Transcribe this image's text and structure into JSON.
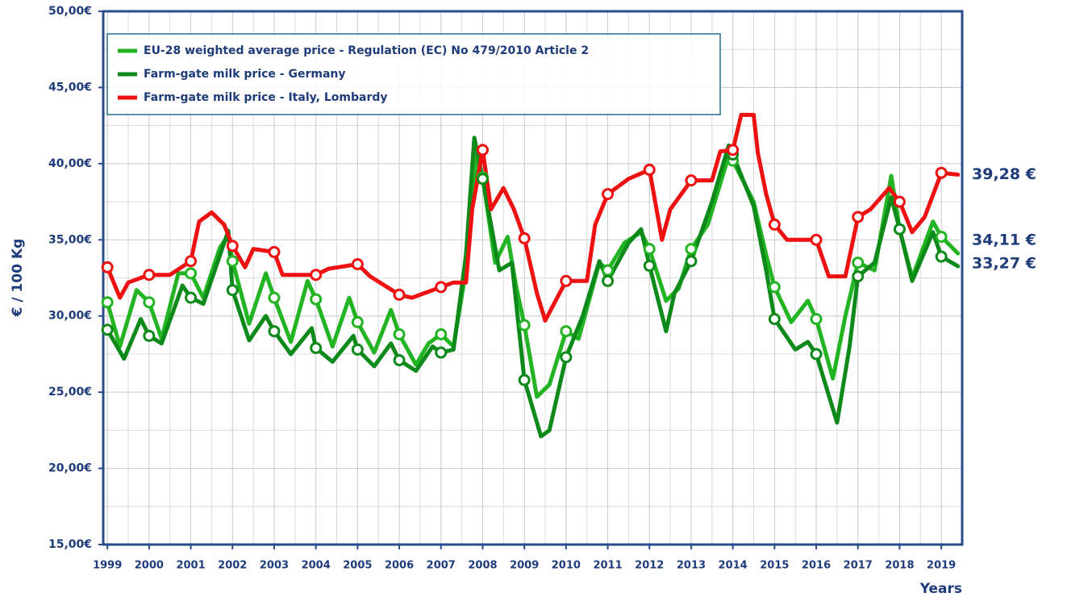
{
  "chart_data": {
    "type": "line",
    "y_axis_label": "€ / 100 Kg",
    "x_axis_label": "Years",
    "xlim": [
      1998.9,
      2019.5
    ],
    "ylim": [
      15,
      50
    ],
    "xticks": [
      1999,
      2000,
      2001,
      2002,
      2003,
      2004,
      2005,
      2006,
      2007,
      2008,
      2009,
      2010,
      2011,
      2012,
      2013,
      2014,
      2015,
      2016,
      2017,
      2018,
      2019
    ],
    "minor_xticks": [
      1999.5,
      2000.5,
      2001.5,
      2002.5,
      2003.5,
      2004.5,
      2005.5,
      2006.5,
      2007.5,
      2008.5,
      2009.5,
      2010.5,
      2011.5,
      2012.5,
      2013.5,
      2014.5,
      2015.5,
      2016.5,
      2017.5,
      2018.5
    ],
    "yticks": [
      {
        "value": 15,
        "label": "15,00€"
      },
      {
        "value": 20,
        "label": "20,00€"
      },
      {
        "value": 25,
        "label": "25,00€"
      },
      {
        "value": 30,
        "label": "30,00€"
      },
      {
        "value": 35,
        "label": "35,00€"
      },
      {
        "value": 40,
        "label": "40,00€"
      },
      {
        "value": 45,
        "label": "45,00€"
      },
      {
        "value": 50,
        "label": "50,00€"
      }
    ],
    "minor_yticks": [
      17.5,
      22.5,
      27.5,
      32.5,
      37.5,
      42.5,
      47.5
    ],
    "grid": true,
    "legend_position": "upper left",
    "series": [
      {
        "name": "EU-28 weighted average price - Regulation (EC) No 479/2010 Article 2",
        "color": "#22b422",
        "label_color": "#1cb31c",
        "end_label": "34,11 €",
        "x": [
          1999,
          1999.3,
          1999.7,
          2000,
          2000.3,
          2000.7,
          2001,
          2001.3,
          2001.7,
          2001.9,
          2002,
          2002.4,
          2002.8,
          2003,
          2003.4,
          2003.8,
          2004,
          2004.4,
          2004.8,
          2005,
          2005.4,
          2005.8,
          2006,
          2006.4,
          2006.7,
          2007,
          2007.3,
          2007.6,
          2007.85,
          2008,
          2008.3,
          2008.6,
          2008.8,
          2009,
          2009.3,
          2009.6,
          2010,
          2010.3,
          2010.8,
          2011,
          2011.4,
          2011.8,
          2012,
          2012.4,
          2012.7,
          2013,
          2013.4,
          2013.9,
          2014,
          2014.5,
          2014.8,
          2015,
          2015.4,
          2015.8,
          2016,
          2016.4,
          2016.7,
          2017,
          2017.4,
          2017.8,
          2018,
          2018.3,
          2018.8,
          2019,
          2019.4
        ],
        "values": [
          30.9,
          28.0,
          31.7,
          30.9,
          28.5,
          32.8,
          32.8,
          31.2,
          34.5,
          35.3,
          33.6,
          29.5,
          32.8,
          31.2,
          28.3,
          32.3,
          31.1,
          28.0,
          31.2,
          29.6,
          27.6,
          30.4,
          28.8,
          26.8,
          28.2,
          28.8,
          28.0,
          33.0,
          40.5,
          39.1,
          33.5,
          35.2,
          32.0,
          29.4,
          24.7,
          25.5,
          29.0,
          28.5,
          33.5,
          33.0,
          34.8,
          35.5,
          34.4,
          31.0,
          31.8,
          34.4,
          36.0,
          40.5,
          40.2,
          37.5,
          34.0,
          31.9,
          29.6,
          31.0,
          29.8,
          25.9,
          30.0,
          33.5,
          33.0,
          39.2,
          35.7,
          32.5,
          36.2,
          35.2,
          34.11
        ]
      },
      {
        "name": "Farm-gate milk price - Germany",
        "color": "#0d8a1a",
        "label_color": "#1a8a1a",
        "end_label": "33,27 €",
        "x": [
          1999,
          1999.4,
          1999.8,
          2000,
          2000.3,
          2000.8,
          2001,
          2001.3,
          2001.9,
          2002,
          2002.4,
          2002.8,
          2003,
          2003.4,
          2003.9,
          2004,
          2004.4,
          2004.9,
          2005,
          2005.4,
          2005.8,
          2006,
          2006.4,
          2006.8,
          2007,
          2007.3,
          2007.6,
          2007.8,
          2008,
          2008.4,
          2008.7,
          2009,
          2009.4,
          2009.6,
          2010,
          2010.4,
          2010.8,
          2011,
          2011.5,
          2011.8,
          2012,
          2012.4,
          2012.6,
          2013,
          2013.5,
          2013.9,
          2014,
          2014.5,
          2014.8,
          2015,
          2015.5,
          2015.8,
          2016,
          2016.5,
          2016.8,
          2017,
          2017.4,
          2017.8,
          2018,
          2018.3,
          2018.8,
          2019,
          2019.4
        ],
        "values": [
          29.1,
          27.2,
          29.8,
          28.7,
          28.2,
          32.0,
          31.2,
          30.8,
          35.6,
          31.7,
          28.4,
          30.0,
          29.0,
          27.5,
          29.2,
          27.9,
          27.0,
          28.7,
          27.8,
          26.7,
          28.2,
          27.1,
          26.4,
          28.0,
          27.6,
          27.8,
          34.0,
          41.7,
          39.0,
          33.0,
          33.5,
          25.8,
          22.1,
          22.5,
          27.3,
          30.0,
          33.6,
          32.3,
          34.8,
          35.7,
          33.3,
          29.0,
          31.5,
          33.6,
          37.5,
          41.2,
          40.6,
          37.2,
          33.0,
          29.8,
          27.8,
          28.3,
          27.5,
          23.0,
          28.0,
          32.6,
          33.5,
          37.8,
          35.7,
          32.3,
          35.5,
          33.9,
          33.27
        ]
      },
      {
        "name": "Farm-gate milk price - Italy, Lombardy",
        "color": "#ee1111",
        "label_color": "#ee1111",
        "end_label": "39,28 €",
        "x": [
          1999,
          1999.3,
          1999.5,
          2000,
          2000.5,
          2001,
          2001.2,
          2001.5,
          2001.8,
          2002,
          2002.3,
          2002.5,
          2003,
          2003.2,
          2004,
          2004.3,
          2005,
          2005.3,
          2006,
          2006.3,
          2007,
          2007.3,
          2007.6,
          2007.75,
          2008,
          2008.2,
          2008.5,
          2008.75,
          2009,
          2009.3,
          2009.5,
          2009.75,
          2010,
          2010.5,
          2010.7,
          2011,
          2011.5,
          2012,
          2012.3,
          2012.5,
          2013,
          2013.5,
          2013.7,
          2014,
          2014.2,
          2014.5,
          2014.6,
          2014.8,
          2015,
          2015.3,
          2016,
          2016.3,
          2016.7,
          2017,
          2017.3,
          2017.75,
          2018,
          2018.3,
          2018.6,
          2019,
          2019.4
        ],
        "values": [
          33.2,
          31.2,
          32.2,
          32.7,
          32.7,
          33.6,
          36.2,
          36.8,
          36.0,
          34.6,
          33.2,
          34.4,
          34.2,
          32.7,
          32.7,
          33.1,
          33.4,
          32.6,
          31.4,
          31.2,
          31.9,
          32.2,
          32.2,
          37.0,
          40.9,
          37.0,
          38.4,
          37.0,
          35.1,
          31.5,
          29.7,
          31.0,
          32.3,
          32.3,
          36.0,
          38.0,
          39.0,
          39.6,
          35.0,
          37.0,
          38.9,
          38.9,
          40.8,
          40.9,
          43.2,
          43.2,
          40.7,
          38.0,
          36.0,
          35.0,
          35.0,
          32.6,
          32.6,
          36.5,
          37.0,
          38.4,
          37.5,
          35.5,
          36.5,
          39.4,
          39.28
        ]
      }
    ]
  }
}
